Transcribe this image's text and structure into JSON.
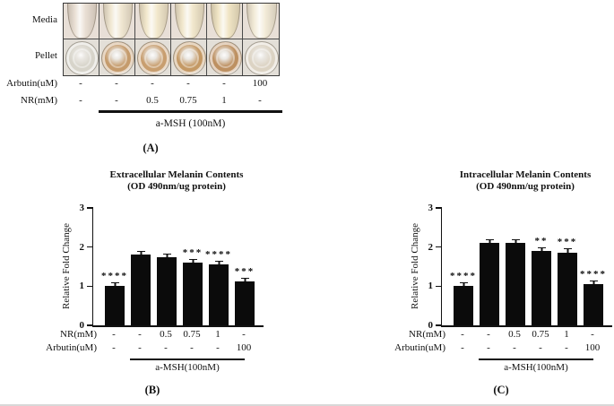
{
  "panel_a": {
    "row_labels": [
      "Media",
      "Pellet"
    ],
    "media_bg": "#e8dfd7",
    "pellet_bg": "#e3dfd8",
    "media_tube_colors": [
      "#e9dfd4",
      "#f0e7d2",
      "#f2e8cd",
      "#f1e7cc",
      "#f0e5c5",
      "#f3ecd9"
    ],
    "pellet_liquid_colors": [
      "#d7d4ca",
      "#c59b6c",
      "#c89e6f",
      "#c49965",
      "#bd9061",
      "#dcd3c3"
    ],
    "treatment_rows": [
      {
        "label": "Arbutin(uM)",
        "values": [
          "-",
          "-",
          "-",
          "-",
          "-",
          "100"
        ]
      },
      {
        "label": "NR(mM)",
        "values": [
          "-",
          "-",
          "0.5",
          "0.75",
          "1",
          "-"
        ]
      }
    ],
    "bracket_label": "a-MSH (100nM)",
    "panel_label": "(A)"
  },
  "chart_data": [
    {
      "type": "bar",
      "panel_label": "(B)",
      "title": "Extracellular Melanin Contents",
      "subtitle": "(OD 490nm/ug protein)",
      "ylabel": "Relative Fold Change",
      "ylim": [
        0,
        3
      ],
      "yticks": [
        0,
        1,
        2,
        3
      ],
      "bar_color": "#0b0b0b",
      "values": [
        1.0,
        1.82,
        1.74,
        1.6,
        1.56,
        1.12
      ],
      "errors": [
        0.03,
        0.04,
        0.03,
        0.03,
        0.04,
        0.05
      ],
      "significance": [
        "****",
        "",
        "",
        "***",
        "****",
        "***"
      ],
      "x_rows": [
        {
          "label": "NR(mM)",
          "values": [
            "-",
            "-",
            "0.5",
            "0.75",
            "1",
            "-"
          ]
        },
        {
          "label": "Arbutin(uM)",
          "values": [
            "-",
            "-",
            "-",
            "-",
            "-",
            "100"
          ]
        }
      ],
      "bracket_label": "a-MSH(100nM)"
    },
    {
      "type": "bar",
      "panel_label": "(C)",
      "title": "Intracellular Melanin Contents",
      "subtitle": "(OD 490nm/ug protein)",
      "ylabel": "Relative Fold Change",
      "ylim": [
        0,
        3
      ],
      "yticks": [
        0,
        1,
        2,
        3
      ],
      "bar_color": "#0b0b0b",
      "values": [
        1.0,
        2.1,
        2.1,
        1.9,
        1.86,
        1.05
      ],
      "errors": [
        0.03,
        0.03,
        0.03,
        0.04,
        0.05,
        0.04
      ],
      "significance": [
        "****",
        "",
        "",
        "**",
        "***",
        "****"
      ],
      "x_rows": [
        {
          "label": "NR(mM)",
          "values": [
            "-",
            "-",
            "0.5",
            "0.75",
            "1",
            "-"
          ]
        },
        {
          "label": "Arbutin(uM)",
          "values": [
            "-",
            "-",
            "-",
            "-",
            "-",
            "100"
          ]
        }
      ],
      "bracket_label": "a-MSH(100nM)"
    }
  ]
}
